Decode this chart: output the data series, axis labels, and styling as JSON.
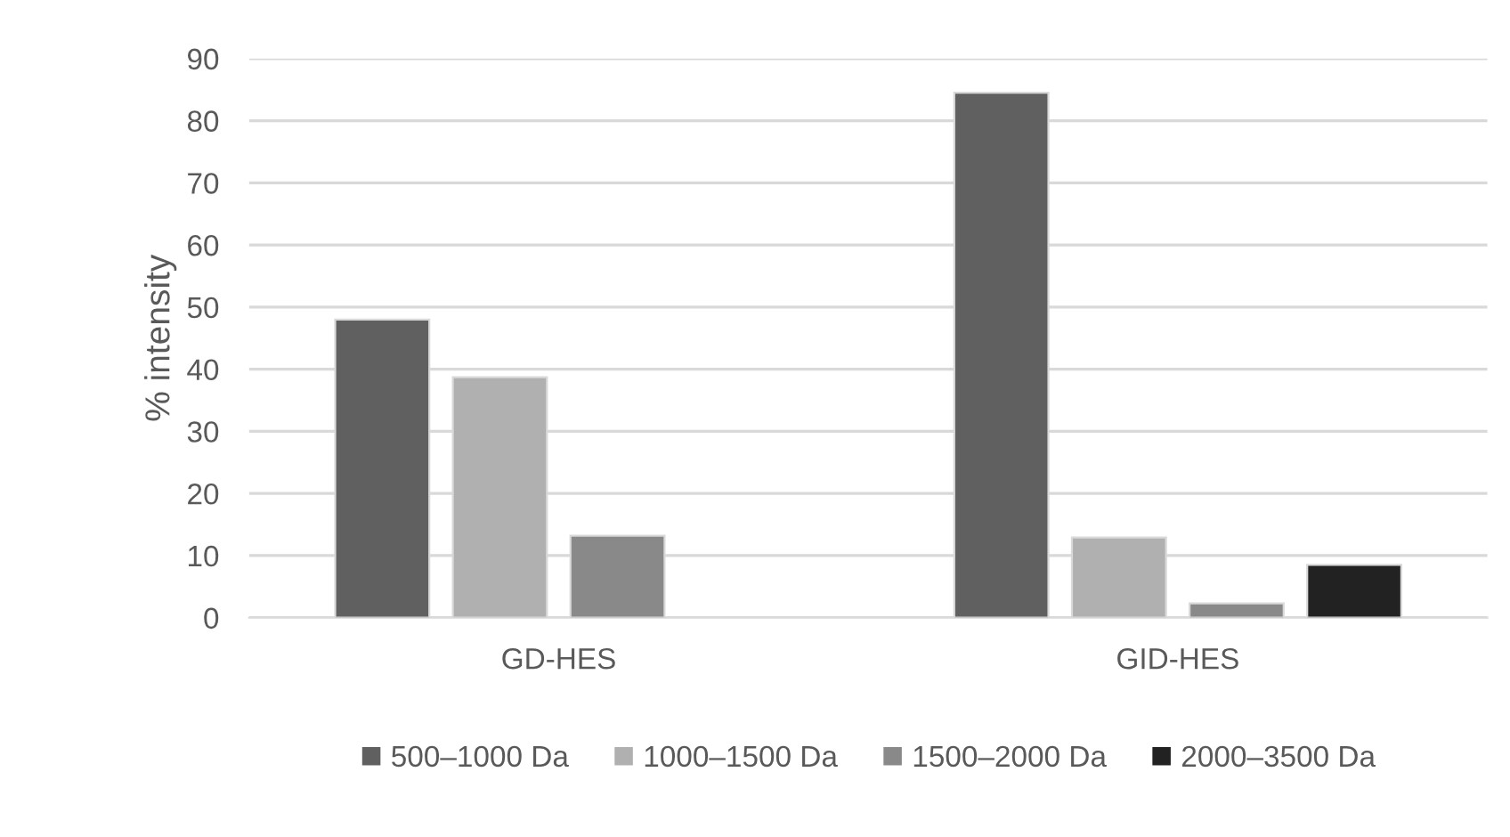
{
  "chart_data": {
    "type": "bar",
    "ylabel": "% intensity",
    "categories": [
      "GD-HES",
      "GID-HES"
    ],
    "series": [
      {
        "name": "500–1000 Da",
        "color": "#606060",
        "values": [
          48,
          84.5
        ]
      },
      {
        "name": "1000–1500 Da",
        "color": "#b0b0b0",
        "values": [
          38.7,
          12.9
        ]
      },
      {
        "name": "1500–2000 Da",
        "color": "#898989",
        "values": [
          13.2,
          2.3
        ]
      },
      {
        "name": "2000–3500 Da",
        "color": "#222222",
        "values": [
          null,
          8.5
        ]
      }
    ],
    "ylim": [
      0,
      90
    ],
    "yticks": [
      0,
      10,
      20,
      30,
      40,
      50,
      60,
      70,
      80,
      90
    ],
    "grid": "y",
    "legend": "bottom"
  }
}
